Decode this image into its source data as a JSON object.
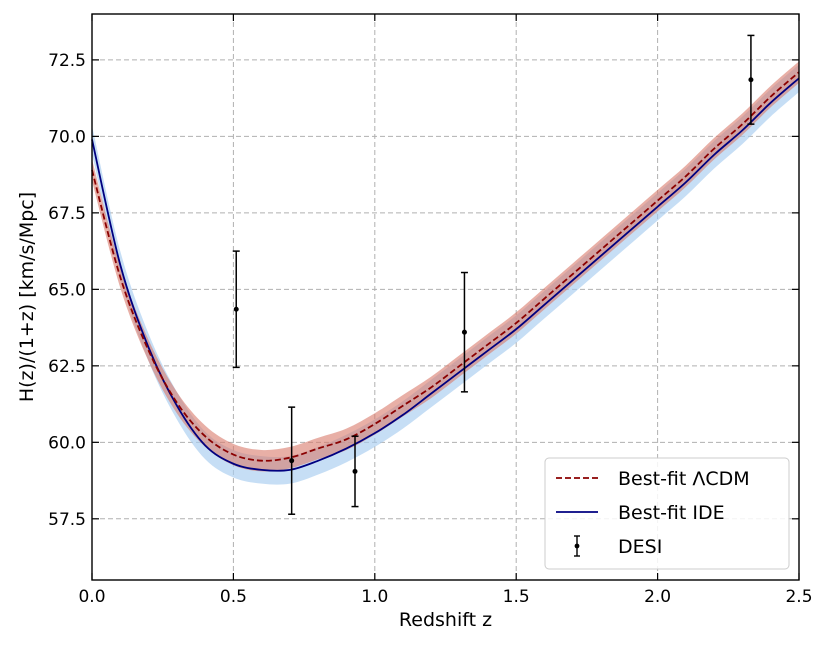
{
  "chart_data": {
    "type": "line",
    "xlabel": "Redshift z",
    "ylabel": "H(z)/(1+z) [km/s/Mpc]",
    "xlim": [
      0.0,
      2.5
    ],
    "ylim": [
      55.5,
      74.0
    ],
    "xticks": [
      "0.0",
      "0.5",
      "1.0",
      "1.5",
      "2.0",
      "2.5"
    ],
    "yticks": [
      "57.5",
      "60.0",
      "62.5",
      "65.0",
      "67.5",
      "70.0",
      "72.5"
    ],
    "grid": true,
    "legend_position": "bottom-right",
    "series": [
      {
        "name": "Best-fit ΛCDM",
        "style": "dashed",
        "color": "#8b0000",
        "band_color": "#d9796a",
        "band_halfwidth": 0.35,
        "x": [
          0.0,
          0.1,
          0.2,
          0.3,
          0.4,
          0.5,
          0.6,
          0.7,
          0.8,
          0.9,
          1.0,
          1.1,
          1.2,
          1.3,
          1.4,
          1.5,
          1.6,
          1.7,
          1.8,
          1.9,
          2.0,
          2.1,
          2.2,
          2.3,
          2.4,
          2.5
        ],
        "y": [
          68.9,
          65.4,
          63.0,
          61.3,
          60.2,
          59.6,
          59.4,
          59.5,
          59.8,
          60.1,
          60.6,
          61.2,
          61.8,
          62.5,
          63.2,
          63.9,
          64.7,
          65.5,
          66.3,
          67.1,
          67.9,
          68.7,
          69.6,
          70.4,
          71.3,
          72.1
        ]
      },
      {
        "name": "Best-fit IDE",
        "style": "solid",
        "color": "#000080",
        "band_color": "#a8cdf0",
        "band_halfwidth": 0.45,
        "x": [
          0.0,
          0.1,
          0.2,
          0.3,
          0.4,
          0.5,
          0.6,
          0.7,
          0.8,
          0.9,
          1.0,
          1.1,
          1.2,
          1.3,
          1.4,
          1.5,
          1.6,
          1.7,
          1.8,
          1.9,
          2.0,
          2.1,
          2.2,
          2.3,
          2.4,
          2.5
        ],
        "y": [
          69.9,
          65.8,
          63.1,
          61.2,
          59.9,
          59.3,
          59.1,
          59.1,
          59.4,
          59.8,
          60.3,
          60.9,
          61.6,
          62.3,
          63.0,
          63.7,
          64.5,
          65.3,
          66.1,
          66.9,
          67.7,
          68.5,
          69.4,
          70.2,
          71.1,
          71.9
        ]
      },
      {
        "name": "DESI",
        "style": "errorbar",
        "color": "#000000",
        "points": [
          {
            "x": 0.51,
            "y": 64.35,
            "err": 1.9
          },
          {
            "x": 0.706,
            "y": 59.4,
            "err": 1.75
          },
          {
            "x": 0.93,
            "y": 59.05,
            "err": 1.15
          },
          {
            "x": 1.317,
            "y": 63.6,
            "err": 1.95
          },
          {
            "x": 2.33,
            "y": 71.85,
            "err": 1.45
          }
        ]
      }
    ]
  }
}
